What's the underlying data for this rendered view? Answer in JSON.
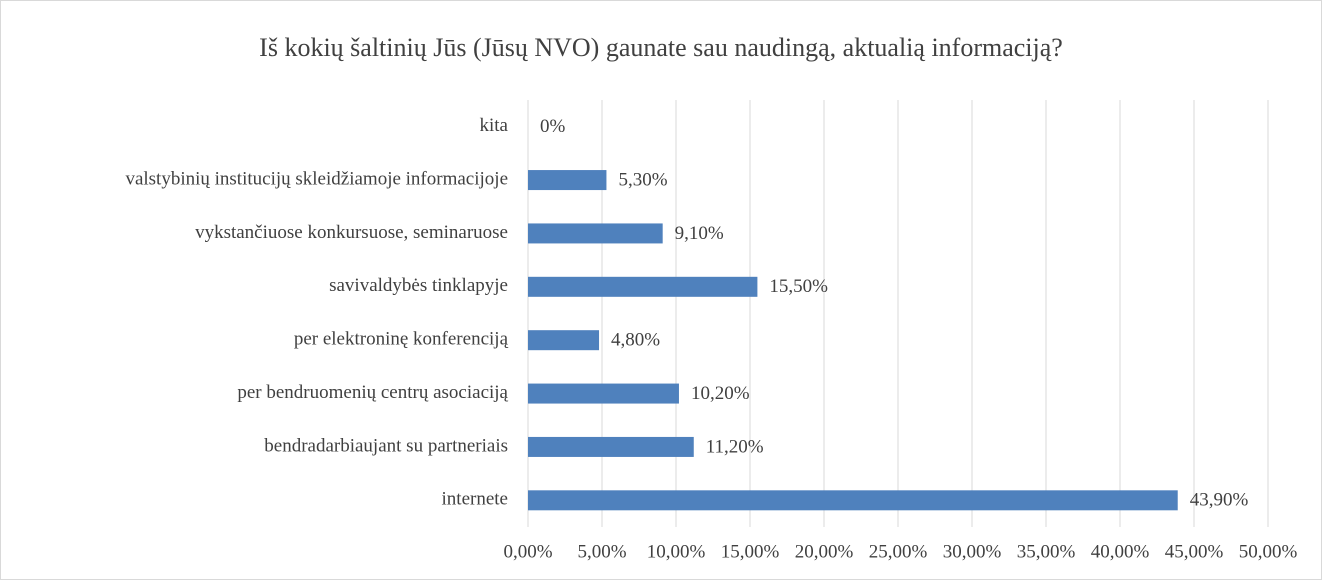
{
  "chart_data": {
    "type": "bar",
    "orientation": "horizontal",
    "title": "Iš kokių šaltinių Jūs (Jūsų NVO) gaunate sau naudingą, aktualią informaciją?",
    "categories": [
      "kita",
      "valstybinių institucijų skleidžiamoje informacijoje",
      "vykstančiuose konkursuose, seminaruose",
      "savivaldybės tinklapyje",
      "per elektroninę konferenciją",
      "per bendruomenių centrų asociaciją",
      "bendradarbiaujant su partneriais",
      "internete"
    ],
    "values": [
      0,
      5.3,
      9.1,
      15.5,
      4.8,
      10.2,
      11.2,
      43.9
    ],
    "value_labels": [
      "0%",
      "5,30%",
      "9,10%",
      "15,50%",
      "4,80%",
      "10,20%",
      "11,20%",
      "43,90%"
    ],
    "color": "#4f81bd",
    "xlim": [
      0,
      50
    ],
    "xticks": [
      {
        "value": 0,
        "label": "0,00%"
      },
      {
        "value": 5,
        "label": "5,00%"
      },
      {
        "value": 10,
        "label": "10,00%"
      },
      {
        "value": 15,
        "label": "15,00%"
      },
      {
        "value": 20,
        "label": "20,00%"
      },
      {
        "value": 25,
        "label": "25,00%"
      },
      {
        "value": 30,
        "label": "30,00%"
      },
      {
        "value": 35,
        "label": "35,00%"
      },
      {
        "value": 40,
        "label": "40,00%"
      },
      {
        "value": 45,
        "label": "45,00%"
      },
      {
        "value": 50,
        "label": "50,00%"
      }
    ],
    "grid": true
  }
}
